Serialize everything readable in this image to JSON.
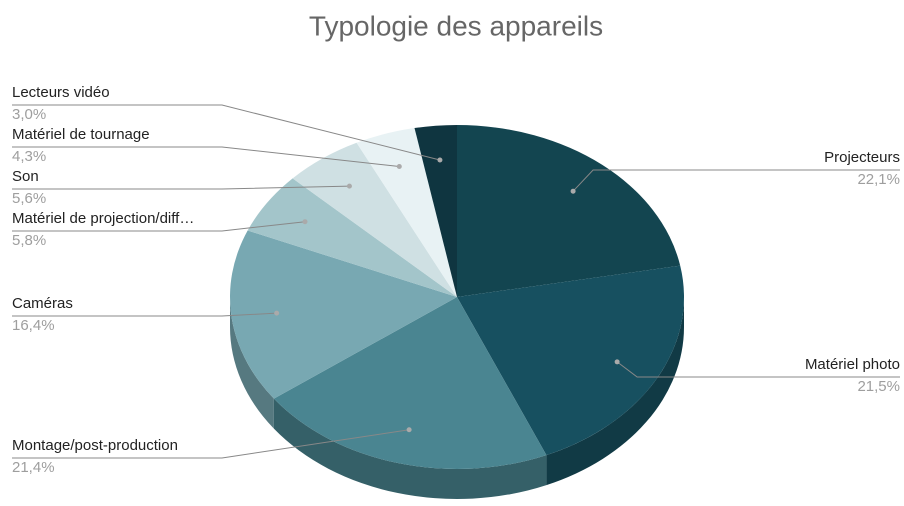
{
  "chart_data": {
    "type": "pie",
    "title": "Typologie des appareils",
    "categories": [
      "Projecteurs",
      "Matériel photo",
      "Montage/post-production",
      "Caméras",
      "Matériel de projection/diff…",
      "Son",
      "Matériel de tournage",
      "Lecteurs vidéo"
    ],
    "values": [
      22.1,
      21.5,
      21.4,
      16.4,
      5.8,
      5.6,
      4.3,
      3.0
    ],
    "value_labels": [
      "22,1%",
      "21,5%",
      "21,4%",
      "16,4%",
      "5,8%",
      "5,6%",
      "4,3%",
      "3,0%"
    ],
    "colors": [
      "#134550",
      "#175060",
      "#4a8591",
      "#78a8b2",
      "#a3c5ca",
      "#cfe0e3",
      "#e8f2f4",
      "#0f3540"
    ]
  }
}
